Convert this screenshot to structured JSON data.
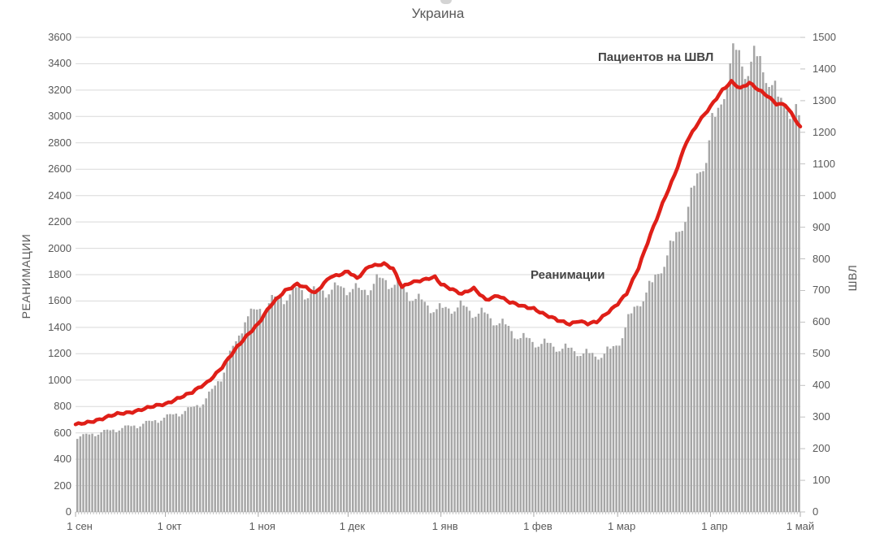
{
  "chart_data": {
    "type": "combo",
    "title": "Украина",
    "x_axis": {
      "unit": "day",
      "total_days": 242,
      "ticks": [
        {
          "label": "1 сен",
          "day": 0
        },
        {
          "label": "1 окт",
          "day": 30
        },
        {
          "label": "1 ноя",
          "day": 61
        },
        {
          "label": "1 дек",
          "day": 91
        },
        {
          "label": "1 янв",
          "day": 122
        },
        {
          "label": "1 фев",
          "day": 153
        },
        {
          "label": "1 мар",
          "day": 181
        },
        {
          "label": "1 апр",
          "day": 212
        },
        {
          "label": "1 май",
          "day": 242
        }
      ]
    },
    "left_axis": {
      "title": "РЕАНИМАЦИИ",
      "min": 0,
      "max": 3600,
      "step": 200,
      "tick_labels": [
        "0",
        "200",
        "400",
        "600",
        "800",
        "1000",
        "1200",
        "1400",
        "1600",
        "1800",
        "2000",
        "2200",
        "2400",
        "2600",
        "2800",
        "3000",
        "3200",
        "3400",
        "3600"
      ]
    },
    "right_axis": {
      "title": "ШВЛ",
      "min": 0,
      "max": 1500,
      "step": 100,
      "tick_labels": [
        "0",
        "100",
        "200",
        "300",
        "400",
        "500",
        "600",
        "700",
        "800",
        "900",
        "1000",
        "1100",
        "1200",
        "1300",
        "1400",
        "1500"
      ]
    },
    "series": [
      {
        "name": "Пациентов на ШВЛ",
        "type": "bar",
        "axis": "right",
        "color": "#a6a6a6",
        "days_span": [
          0,
          241
        ],
        "anchors": [
          [
            0,
            238
          ],
          [
            5,
            248
          ],
          [
            10,
            257
          ],
          [
            14,
            265
          ],
          [
            19,
            274
          ],
          [
            24,
            285
          ],
          [
            30,
            303
          ],
          [
            34,
            315
          ],
          [
            38,
            328
          ],
          [
            42,
            350
          ],
          [
            45,
            385
          ],
          [
            48,
            430
          ],
          [
            51,
            500
          ],
          [
            54,
            560
          ],
          [
            56,
            617
          ],
          [
            58,
            630
          ],
          [
            61,
            645
          ],
          [
            65,
            672
          ],
          [
            70,
            688
          ],
          [
            74,
            710
          ],
          [
            77,
            695
          ],
          [
            80,
            700
          ],
          [
            84,
            708
          ],
          [
            88,
            712
          ],
          [
            91,
            715
          ],
          [
            95,
            700
          ],
          [
            100,
            735
          ],
          [
            103,
            738
          ],
          [
            106,
            725
          ],
          [
            110,
            700
          ],
          [
            113,
            680
          ],
          [
            116,
            662
          ],
          [
            119,
            650
          ],
          [
            122,
            642
          ],
          [
            125,
            652
          ],
          [
            128,
            653
          ],
          [
            132,
            638
          ],
          [
            136,
            628
          ],
          [
            140,
            608
          ],
          [
            144,
            585
          ],
          [
            148,
            555
          ],
          [
            153,
            540
          ],
          [
            157,
            533
          ],
          [
            162,
            521
          ],
          [
            166,
            514
          ],
          [
            170,
            503
          ],
          [
            173,
            497
          ],
          [
            176,
            505
          ],
          [
            179,
            520
          ],
          [
            181,
            545
          ],
          [
            184,
            610
          ],
          [
            187,
            660
          ],
          [
            190,
            700
          ],
          [
            192,
            725
          ],
          [
            196,
            800
          ],
          [
            199,
            855
          ],
          [
            202,
            920
          ],
          [
            205,
            1000
          ],
          [
            208,
            1090
          ],
          [
            210,
            1140
          ],
          [
            212,
            1230
          ],
          [
            214,
            1265
          ],
          [
            216,
            1350
          ],
          [
            218,
            1430
          ],
          [
            220,
            1460
          ],
          [
            221,
            1445
          ],
          [
            223,
            1415
          ],
          [
            225,
            1435
          ],
          [
            227,
            1440
          ],
          [
            229,
            1412
          ],
          [
            231,
            1390
          ],
          [
            233,
            1330
          ],
          [
            235,
            1295
          ],
          [
            237,
            1310
          ],
          [
            239,
            1262
          ],
          [
            241,
            1254
          ]
        ]
      },
      {
        "name": "Реанимации",
        "type": "line",
        "axis": "left",
        "color": "#df1f18",
        "days_span": [
          0,
          242
        ],
        "anchors": [
          [
            0,
            660
          ],
          [
            4,
            682
          ],
          [
            9,
            708
          ],
          [
            14,
            742
          ],
          [
            19,
            762
          ],
          [
            24,
            788
          ],
          [
            30,
            820
          ],
          [
            34,
            862
          ],
          [
            39,
            905
          ],
          [
            44,
            985
          ],
          [
            49,
            1100
          ],
          [
            54,
            1250
          ],
          [
            58,
            1360
          ],
          [
            61,
            1430
          ],
          [
            65,
            1560
          ],
          [
            70,
            1680
          ],
          [
            74,
            1732
          ],
          [
            77,
            1700
          ],
          [
            80,
            1655
          ],
          [
            85,
            1788
          ],
          [
            88,
            1800
          ],
          [
            91,
            1822
          ],
          [
            94,
            1768
          ],
          [
            98,
            1868
          ],
          [
            103,
            1882
          ],
          [
            106,
            1842
          ],
          [
            109,
            1706
          ],
          [
            112,
            1745
          ],
          [
            116,
            1760
          ],
          [
            120,
            1778
          ],
          [
            122,
            1728
          ],
          [
            126,
            1690
          ],
          [
            129,
            1655
          ],
          [
            133,
            1692
          ],
          [
            137,
            1610
          ],
          [
            141,
            1645
          ],
          [
            145,
            1588
          ],
          [
            149,
            1562
          ],
          [
            153,
            1546
          ],
          [
            157,
            1492
          ],
          [
            161,
            1452
          ],
          [
            165,
            1428
          ],
          [
            168,
            1452
          ],
          [
            171,
            1426
          ],
          [
            174,
            1438
          ],
          [
            178,
            1522
          ],
          [
            181,
            1582
          ],
          [
            184,
            1655
          ],
          [
            188,
            1850
          ],
          [
            192,
            2110
          ],
          [
            196,
            2340
          ],
          [
            200,
            2550
          ],
          [
            204,
            2810
          ],
          [
            208,
            2960
          ],
          [
            212,
            3070
          ],
          [
            216,
            3200
          ],
          [
            219,
            3268
          ],
          [
            222,
            3215
          ],
          [
            225,
            3252
          ],
          [
            228,
            3200
          ],
          [
            231,
            3160
          ],
          [
            234,
            3100
          ],
          [
            237,
            3088
          ],
          [
            240,
            2985
          ],
          [
            242,
            2915
          ]
        ]
      }
    ],
    "grid": {
      "show_horizontal": true,
      "color": "#d9d9d9"
    },
    "render_hints": {
      "bar_weekly_pattern": [
        0.962,
        1.0,
        1.015,
        1.01,
        1.003,
        0.988,
        0.968
      ],
      "bar_jitter": 0.01,
      "line_wobble": [
        7,
        1.9,
        4,
        0.47
      ]
    }
  },
  "colors": {
    "background": "#ffffff",
    "text": "#595959",
    "annotation": "#454545",
    "grid": "#d9d9d9",
    "baseline": "#c9c9c9",
    "tick": "#c2c2c2",
    "bar": "#a6a6a6",
    "line": "#df1f18"
  }
}
